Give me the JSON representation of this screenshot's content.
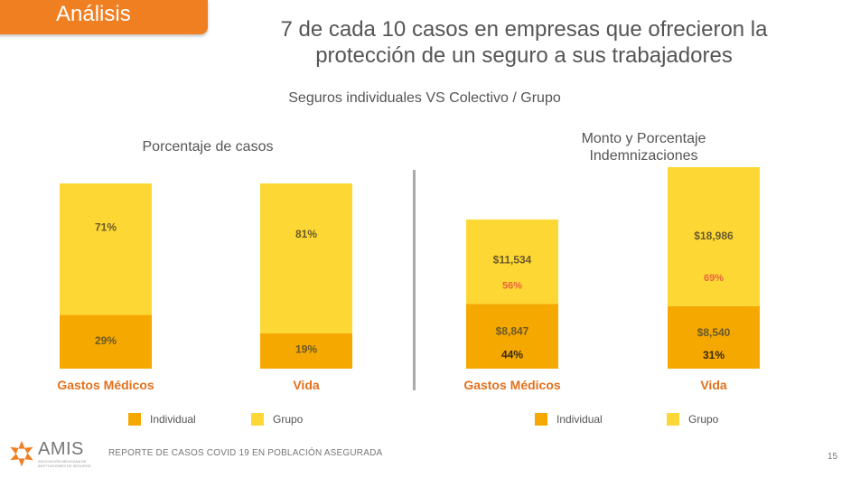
{
  "section_label": "Análisis",
  "title": "7 de cada 10 casos en empresas que ofrecieron la protección de un seguro a sus trabajadores",
  "subtitle": "Seguros individuales VS  Colectivo / Grupo",
  "footer_text": "REPORTE DE CASOS COVID 19 EN POBLACIÓN ASEGURADA",
  "page_number": "15",
  "logo": {
    "name": "AMIS",
    "subtitle": "ASOCIACIÓN MEXICANA DE INSTITUCIONES DE SEGUROS"
  },
  "colors": {
    "individual": "#f5a800",
    "grupo": "#fdd835",
    "accent": "#f07f21",
    "label_orange": "#e2711d"
  },
  "legend": {
    "individual": "Individual",
    "grupo": "Grupo"
  },
  "chart_data": [
    {
      "type": "bar",
      "stacked": true,
      "title": "Porcentaje de casos",
      "categories": [
        "Gastos Médicos",
        "Vida"
      ],
      "series": [
        {
          "name": "Individual",
          "values": [
            29,
            19
          ],
          "labels": [
            "29%",
            "19%"
          ]
        },
        {
          "name": "Grupo",
          "values": [
            71,
            81
          ],
          "labels": [
            "71%",
            "81%"
          ]
        }
      ],
      "ylim": [
        0,
        100
      ],
      "grid": false,
      "legend_position": "bottom"
    },
    {
      "type": "bar",
      "stacked": true,
      "title": "Monto y Porcentaje Indemnizaciones",
      "categories": [
        "Gastos Médicos",
        "Vida"
      ],
      "series": [
        {
          "name": "Individual",
          "values": [
            8847,
            8540
          ],
          "amount_labels": [
            "$8,847",
            "$8,540"
          ],
          "percent_labels": [
            "44%",
            "31%"
          ]
        },
        {
          "name": "Grupo",
          "values": [
            11534,
            18986
          ],
          "amount_labels": [
            "$11,534",
            "$18,986"
          ],
          "percent_labels": [
            "56%",
            "69%"
          ]
        }
      ],
      "grid": false,
      "legend_position": "bottom"
    }
  ]
}
